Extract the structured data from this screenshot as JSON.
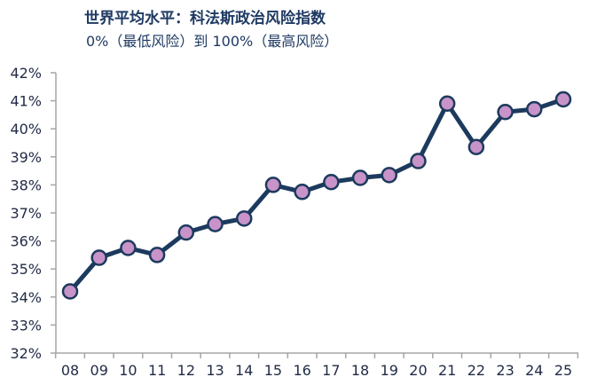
{
  "chart_data": {
    "type": "line",
    "title": "世界平均水平：科法斯政治风险指数",
    "subtitle": "0%（最低风险）到 100%（最高风险）",
    "xlabel": "",
    "ylabel": "",
    "categories": [
      "08",
      "09",
      "10",
      "11",
      "12",
      "13",
      "14",
      "15",
      "16",
      "17",
      "18",
      "19",
      "20",
      "21",
      "22",
      "23",
      "24",
      "25"
    ],
    "series": [
      {
        "name": "世界平均水平",
        "values": [
          34.2,
          35.4,
          35.75,
          35.5,
          36.3,
          36.6,
          36.8,
          38.0,
          37.75,
          38.1,
          38.25,
          38.35,
          38.85,
          40.9,
          39.35,
          40.6,
          40.7,
          41.05
        ]
      }
    ],
    "ylim": [
      32,
      42
    ],
    "yticks": [
      32,
      33,
      34,
      35,
      36,
      37,
      38,
      39,
      40,
      41,
      42
    ],
    "ytick_format": "{v}%",
    "grid": false,
    "line_color": "#1c3a5e",
    "marker_color": "#c893c8"
  }
}
